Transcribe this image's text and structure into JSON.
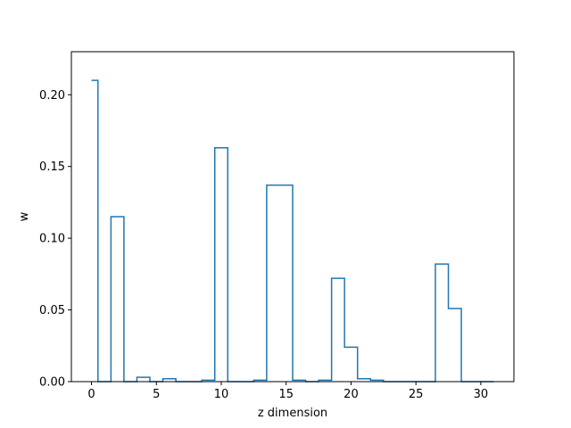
{
  "chart_data": {
    "type": "line",
    "drawstyle": "steps-mid",
    "title": "",
    "xlabel": "z dimension",
    "ylabel": "w",
    "xlim": [
      -1.55,
      32.55
    ],
    "ylim": [
      0,
      0.23
    ],
    "grid": false,
    "legend": "none",
    "line_color": "#1f77b4",
    "xticks": [
      0,
      5,
      10,
      15,
      20,
      25,
      30
    ],
    "xtick_labels": [
      "0",
      "5",
      "10",
      "15",
      "20",
      "25",
      "30"
    ],
    "yticks": [
      0.0,
      0.05,
      0.1,
      0.15,
      0.2
    ],
    "ytick_labels": [
      "0.00",
      "0.05",
      "0.10",
      "0.15",
      "0.20"
    ],
    "series": [
      {
        "x": [
          0,
          1,
          2,
          3,
          4,
          5,
          6,
          7,
          8,
          9,
          10,
          11,
          12,
          13,
          14,
          15,
          16,
          17,
          18,
          19,
          20,
          21,
          22,
          23,
          24,
          25,
          26,
          27,
          28,
          29,
          30,
          31
        ],
        "values": [
          0.21,
          0.0,
          0.115,
          0.0,
          0.003,
          0.0,
          0.002,
          0.0,
          0.0,
          0.001,
          0.163,
          0.0,
          0.0,
          0.001,
          0.137,
          0.137,
          0.001,
          0.0,
          0.001,
          0.072,
          0.024,
          0.002,
          0.001,
          0.0,
          0.0,
          0.0,
          0.0,
          0.082,
          0.051,
          0.0,
          0.0,
          0.0
        ]
      }
    ]
  }
}
